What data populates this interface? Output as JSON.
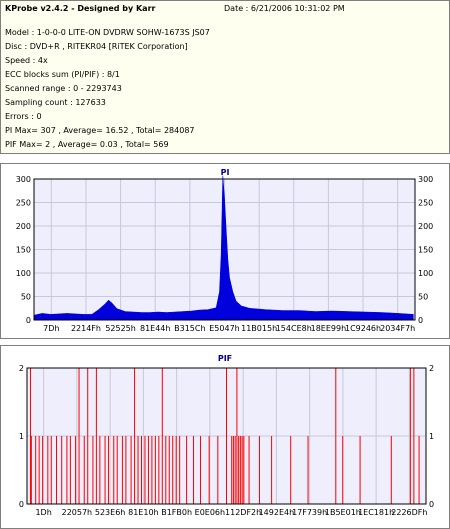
{
  "header": {
    "title": "KProbe v2.4.2 - Designed by Karr",
    "date": "Date : 6/21/2006 10:31:02 PM",
    "lines": [
      "Model : 1-0-0-0 LITE-ON DVDRW SOHW-1673S JS07",
      "Disc : DVD+R , RITEKR04 [RiTEK Corporation]",
      "Speed : 4x",
      "ECC blocks sum (PI/PIF) : 8/1",
      "Scanned range : 0 - 2293743",
      "Sampling count : 127633",
      "Errors : 0",
      "PI Max= 307 , Average= 16.52 , Total= 284087",
      "PIF Max= 2 , Average= 0.03 , Total= 569"
    ]
  },
  "colors": {
    "pi_fill": "#0000dd",
    "pif_bar": "#ff0000",
    "plot_bg": "#eeeefc",
    "grid": "#c8c8dc"
  },
  "chart_data": [
    {
      "type": "area",
      "title": "PI",
      "ylim": [
        0,
        300
      ],
      "y_ticks": [
        "300",
        "250",
        "200",
        "150",
        "100",
        "50",
        "0"
      ],
      "x_tick_labels": [
        "7Dh",
        "2214Fh",
        "52525h",
        "81E44h",
        "B315Ch",
        "E5047h",
        "11B015h",
        "154CE8h",
        "18EE99h",
        "1C9246h",
        "2034F7h"
      ],
      "series": [
        {
          "x": [
            0.0,
            0.05,
            0.1,
            0.15,
            0.2,
            0.25,
            0.3,
            0.35,
            0.39,
            0.43,
            0.45,
            0.47,
            0.5,
            0.55,
            0.6,
            0.65,
            0.7,
            0.75,
            0.8,
            0.85,
            0.9,
            0.95,
            1.0,
            1.05,
            1.1,
            1.12,
            1.13,
            1.14,
            1.15,
            1.16,
            1.17,
            1.18,
            1.2,
            1.22,
            1.25,
            1.3,
            1.4,
            1.5,
            1.6,
            1.7,
            1.8,
            1.9,
            2.0,
            2.1,
            2.2,
            2.29
          ],
          "values": [
            10,
            14,
            12,
            13,
            14,
            13,
            12,
            12,
            22,
            34,
            42,
            36,
            24,
            18,
            17,
            16,
            16,
            17,
            16,
            17,
            18,
            19,
            21,
            22,
            26,
            60,
            140,
            307,
            260,
            190,
            130,
            90,
            60,
            40,
            30,
            25,
            22,
            20,
            20,
            18,
            19,
            18,
            17,
            16,
            14,
            12
          ]
        }
      ]
    },
    {
      "type": "bar",
      "title": "PIF",
      "ylim": [
        0,
        2
      ],
      "y_ticks": [
        "2",
        "1",
        "0"
      ],
      "x_tick_labels": [
        "1Dh",
        "22057h",
        "523E6h",
        "81E10h",
        "B1FB0h",
        "E0E06h",
        "112DF2h",
        "1492E4h",
        "17F739h",
        "1B5E01h",
        "1EC181h",
        "2226DFh"
      ],
      "series": [
        {
          "x": [
            0.02,
            0.025,
            0.05,
            0.07,
            0.09,
            0.12,
            0.14,
            0.17,
            0.2,
            0.23,
            0.25,
            0.28,
            0.3,
            0.33,
            0.35,
            0.38,
            0.4,
            0.42,
            0.45,
            0.47,
            0.5,
            0.52,
            0.55,
            0.57,
            0.6,
            0.62,
            0.64,
            0.66,
            0.68,
            0.7,
            0.72,
            0.74,
            0.76,
            0.78,
            0.8,
            0.82,
            0.84,
            0.86,
            0.88,
            0.92,
            0.96,
            1.0,
            1.05,
            1.1,
            1.15,
            1.18,
            1.19,
            1.2,
            1.21,
            1.22,
            1.23,
            1.24,
            1.25,
            1.28,
            1.34,
            1.41,
            1.52,
            1.62,
            1.78,
            1.82,
            1.92,
            2.1,
            2.21,
            2.23,
            2.26
          ],
          "values": [
            2,
            1,
            1,
            1,
            1,
            1,
            1,
            1,
            1,
            1,
            1,
            1,
            2,
            1,
            2,
            1,
            2,
            1,
            1,
            1,
            1,
            1,
            1,
            1,
            1,
            2,
            1,
            1,
            1,
            1,
            1,
            1,
            1,
            2,
            1,
            1,
            1,
            1,
            1,
            1,
            1,
            1,
            1,
            1,
            2,
            1,
            1,
            1,
            2,
            1,
            1,
            1,
            1,
            1,
            1,
            1,
            1,
            1,
            2,
            1,
            1,
            1,
            2,
            2,
            1
          ]
        }
      ]
    }
  ]
}
